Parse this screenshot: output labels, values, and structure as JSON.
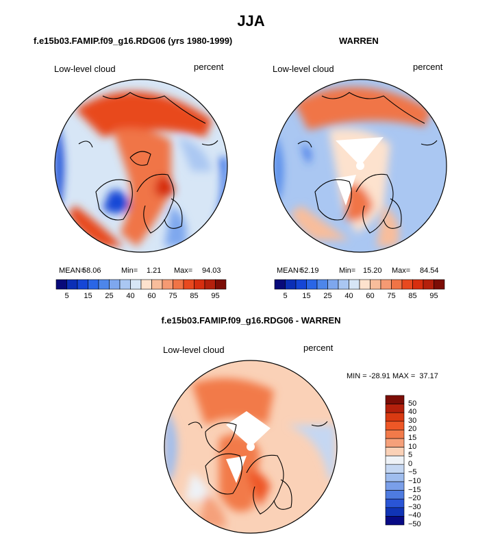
{
  "figure": {
    "title": "JJA",
    "left_panel_title": "f.e15b03.FAMIP.f09_g16.RDG06 (yrs 1980-1999)",
    "right_panel_title": "WARREN",
    "diff_panel_title": "f.e15b03.FAMIP.f09_g16.RDG06 - WARREN"
  },
  "panels": {
    "model": {
      "variable": "Low-level cloud",
      "units": "percent",
      "mean_label": "MEAN=",
      "mean": "58.06",
      "min_label": "Min=",
      "min": "1.21",
      "max_label": "Max=",
      "max": "94.03"
    },
    "obs": {
      "variable": "Low-level cloud",
      "units": "percent",
      "mean_label": "MEAN=",
      "mean": "52.19",
      "min_label": "Min=",
      "min": "15.20",
      "max_label": "Max=",
      "max": "84.54"
    },
    "diff": {
      "variable": "Low-level cloud",
      "units": "percent",
      "stats_label": "MIN = -28.91 MAX =  37.17"
    }
  },
  "chart_data": [
    {
      "type": "heatmap",
      "subtype": "polar-stereographic contour map",
      "title": "f.e15b03.FAMIP.f09_g16.RDG06 (yrs 1980-1999)",
      "variable": "Low-level cloud",
      "units": "percent",
      "stats": {
        "mean": 58.06,
        "min": 1.21,
        "max": 94.03
      },
      "colorbar_levels": [
        5,
        10,
        15,
        20,
        25,
        30,
        40,
        50,
        60,
        65,
        70,
        75,
        80,
        85,
        90,
        95
      ],
      "colorbar_tick_labels": [
        "5",
        "15",
        "25",
        "40",
        "60",
        "75",
        "85",
        "95"
      ]
    },
    {
      "type": "heatmap",
      "subtype": "polar-stereographic contour map",
      "title": "WARREN",
      "variable": "Low-level cloud",
      "units": "percent",
      "stats": {
        "mean": 52.19,
        "min": 15.2,
        "max": 84.54
      },
      "colorbar_levels": [
        5,
        10,
        15,
        20,
        25,
        30,
        40,
        50,
        60,
        65,
        70,
        75,
        80,
        85,
        90,
        95
      ],
      "colorbar_tick_labels": [
        "5",
        "15",
        "25",
        "40",
        "60",
        "75",
        "85",
        "95"
      ]
    },
    {
      "type": "heatmap",
      "subtype": "polar-stereographic contour map (difference)",
      "title": "f.e15b03.FAMIP.f09_g16.RDG06 - WARREN",
      "variable": "Low-level cloud",
      "units": "percent",
      "stats": {
        "min": -28.91,
        "max": 37.17
      },
      "colorbar_levels": [
        50,
        40,
        30,
        20,
        15,
        10,
        5,
        0,
        -5,
        -10,
        -15,
        -20,
        -30,
        -40,
        -50
      ],
      "colorbar_tick_labels": [
        "50",
        "40",
        "30",
        "20",
        "15",
        "10",
        "5",
        "0",
        "−5",
        "−10",
        "−15",
        "−20",
        "−30",
        "−40",
        "−50"
      ]
    }
  ],
  "palettes": {
    "abs": [
      "#080a7a",
      "#0b2fb6",
      "#1546d6",
      "#2a66e6",
      "#4d86ea",
      "#7ea7ee",
      "#aac7f2",
      "#d7e6f6",
      "#fde2ce",
      "#f8bd9b",
      "#f59a73",
      "#f07446",
      "#e8491f",
      "#d72e0f",
      "#b4200c",
      "#7c0d06"
    ],
    "diff": [
      "#7c0d06",
      "#b4200c",
      "#d93a12",
      "#ee5726",
      "#f27a4a",
      "#f5a07a",
      "#fad1b7",
      "#eef2f7",
      "#c5d7f2",
      "#9fbdee",
      "#7a9fe9",
      "#4e7be0",
      "#2a55d6",
      "#1034b6",
      "#070a85"
    ]
  }
}
